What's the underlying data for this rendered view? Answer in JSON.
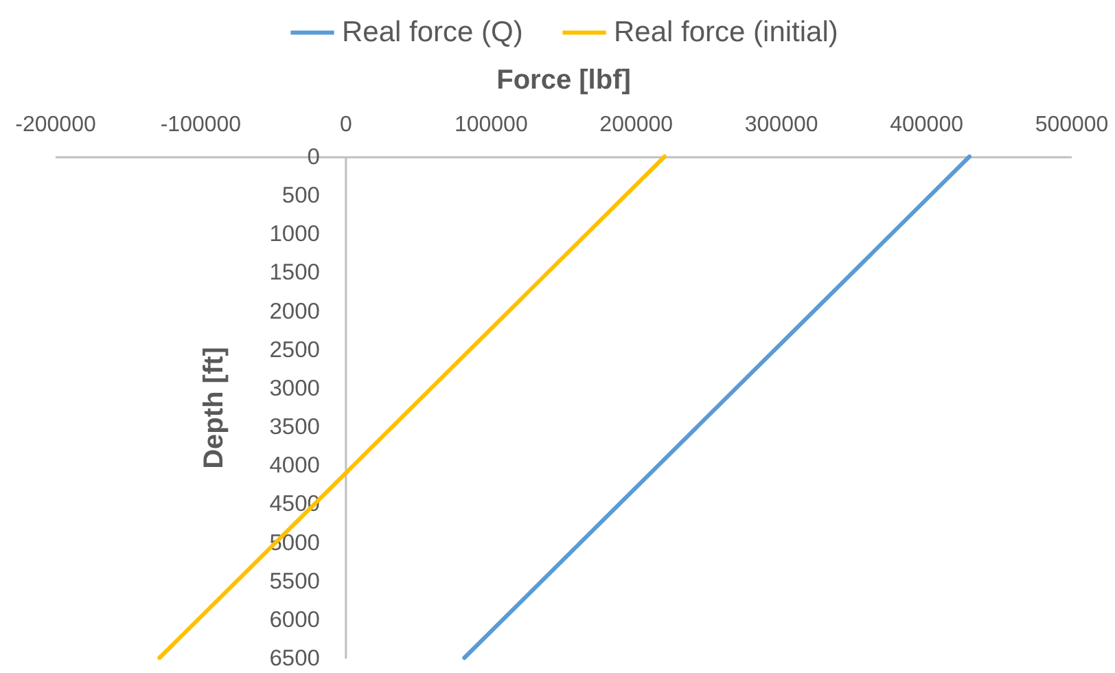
{
  "chart_data": {
    "type": "line",
    "xlabel": "Force [lbf]",
    "ylabel": "Depth [ft]",
    "xlim": [
      -200000,
      500000
    ],
    "xticks": [
      -200000,
      -100000,
      0,
      100000,
      200000,
      300000,
      400000,
      500000
    ],
    "ylim": [
      6500,
      0
    ],
    "yticks": [
      0,
      500,
      1000,
      1500,
      2000,
      2500,
      3000,
      3500,
      4000,
      4500,
      5000,
      5500,
      6000,
      6500
    ],
    "series": [
      {
        "name": "Real force (Q)",
        "color": "#5b9bd5",
        "x": [
          430000,
          82000
        ],
        "values": [
          0,
          6500
        ]
      },
      {
        "name": "Real force (initial)",
        "color": "#ffc000",
        "x": [
          220000,
          -128000
        ],
        "values": [
          0,
          6500
        ]
      }
    ],
    "grid": false,
    "legend": "top"
  }
}
